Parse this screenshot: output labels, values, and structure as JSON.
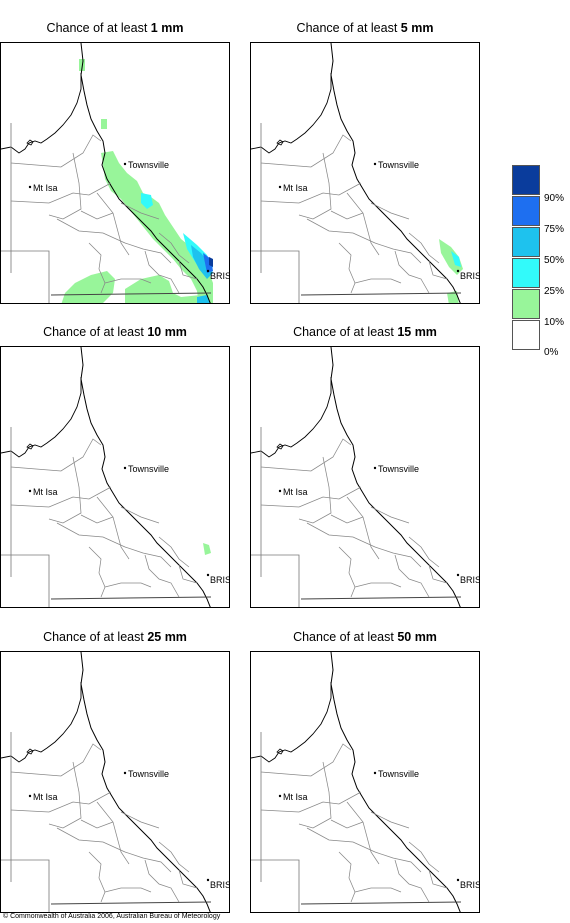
{
  "panels": [
    {
      "prefix": "Chance of at least ",
      "amount": "1 mm"
    },
    {
      "prefix": "Chance of at least ",
      "amount": "5 mm"
    },
    {
      "prefix": "Chance of at least ",
      "amount": "10 mm"
    },
    {
      "prefix": "Chance of at least ",
      "amount": "15 mm"
    },
    {
      "prefix": "Chance of at least ",
      "amount": "25 mm"
    },
    {
      "prefix": "Chance of at least ",
      "amount": "50 mm"
    }
  ],
  "places": {
    "townsville": "Townsville",
    "mt_isa": "Mt Isa",
    "brisbane": "BRIS"
  },
  "legend": {
    "labels": [
      "90%",
      "75%",
      "50%",
      "25%",
      "10%",
      "0%"
    ],
    "colors": [
      "#0a3c9c",
      "#1e6ff0",
      "#1ec2ee",
      "#32fafa",
      "#98f59a",
      "#ffffff"
    ]
  },
  "copyright": "© Commonwealth of Australia 2006, Australian Bureau of Meteorology"
}
